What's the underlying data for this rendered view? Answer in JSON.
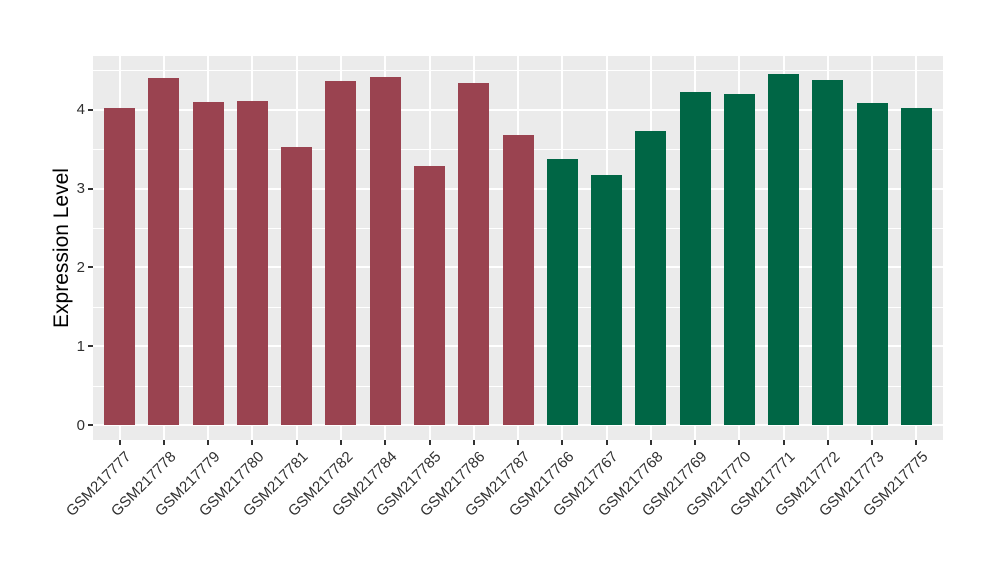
{
  "chart_data": {
    "type": "bar",
    "title": "",
    "xlabel": "",
    "ylabel": "Expression Level",
    "categories": [
      "GSM217777",
      "GSM217778",
      "GSM217779",
      "GSM217780",
      "GSM217781",
      "GSM217782",
      "GSM217784",
      "GSM217785",
      "GSM217786",
      "GSM217787",
      "GSM217766",
      "GSM217767",
      "GSM217768",
      "GSM217769",
      "GSM217770",
      "GSM217771",
      "GSM217772",
      "GSM217773",
      "GSM217775"
    ],
    "values": [
      4.02,
      4.4,
      4.1,
      4.11,
      3.53,
      4.36,
      4.42,
      3.29,
      4.34,
      3.68,
      3.37,
      3.17,
      3.73,
      4.23,
      4.2,
      4.45,
      4.38,
      4.09,
      4.02
    ],
    "groups": [
      {
        "name": "left-group",
        "color": "#9A4350",
        "category_range": [
          0,
          9
        ]
      },
      {
        "name": "right-group",
        "color": "#006645",
        "category_range": [
          10,
          18
        ]
      }
    ],
    "ylim": [
      -0.19,
      4.68
    ],
    "y_ticks": [
      0,
      1,
      2,
      3,
      4
    ],
    "y_minor_gridlines": [
      0.5,
      1.5,
      2.5,
      3.5,
      4.5
    ],
    "x_tick_angle": 45,
    "legend": "none",
    "grid": "on",
    "colors": {
      "panel_bg": "#EBEBEB",
      "gridline": "#FFFFFF",
      "tick_mark": "#333333",
      "axis_text": "#303030",
      "axis_title_text": "#000000"
    }
  }
}
